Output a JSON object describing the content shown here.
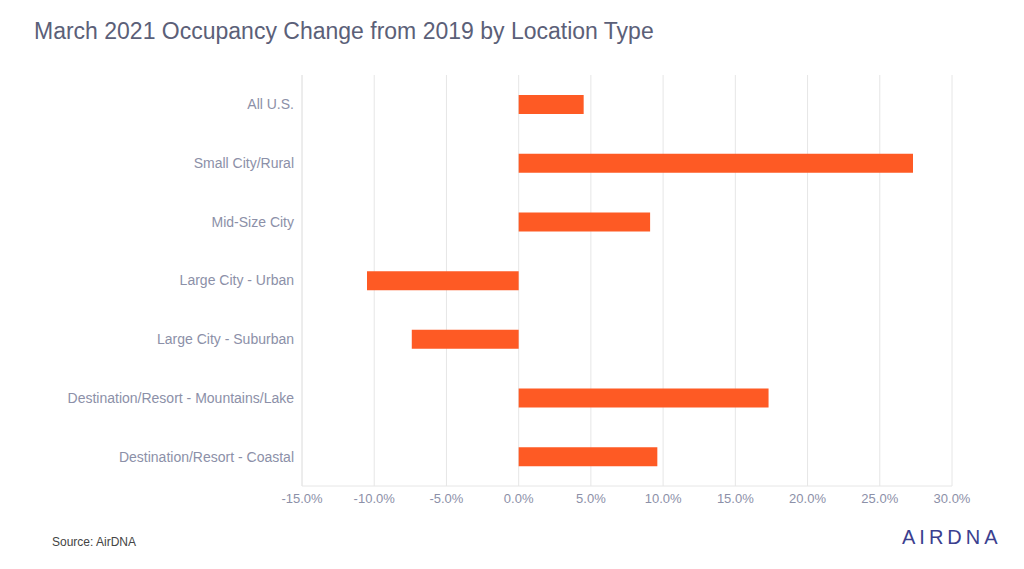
{
  "chart_data": {
    "type": "bar",
    "title": "March 2021 Occupancy Change from 2019 by Location Type",
    "orientation": "horizontal",
    "categories": [
      "All U.S.",
      "Small City/Rural",
      "Mid-Size City",
      "Large City - Urban",
      "Large City - Suburban",
      "Destination/Resort - Mountains/Lake",
      "Destination/Resort - Coastal"
    ],
    "values": [
      4.5,
      27.3,
      9.1,
      -10.5,
      -7.4,
      17.3,
      9.6
    ],
    "color": "#fe5a24",
    "xlim": [
      -15,
      30
    ],
    "xticks": [
      {
        "value": -15,
        "label": "-15.0%"
      },
      {
        "value": -10,
        "label": "-10.0%"
      },
      {
        "value": -5,
        "label": "-5.0%"
      },
      {
        "value": 0,
        "label": "0.0%"
      },
      {
        "value": 5,
        "label": "5.0%"
      },
      {
        "value": 10,
        "label": "10.0%"
      },
      {
        "value": 15,
        "label": "15.0%"
      },
      {
        "value": 20,
        "label": "20.0%"
      },
      {
        "value": 25,
        "label": "25.0%"
      },
      {
        "value": 30,
        "label": "30.0%"
      }
    ],
    "grid": true,
    "source": "Source: AirDNA",
    "logo": "AIRDNA"
  }
}
